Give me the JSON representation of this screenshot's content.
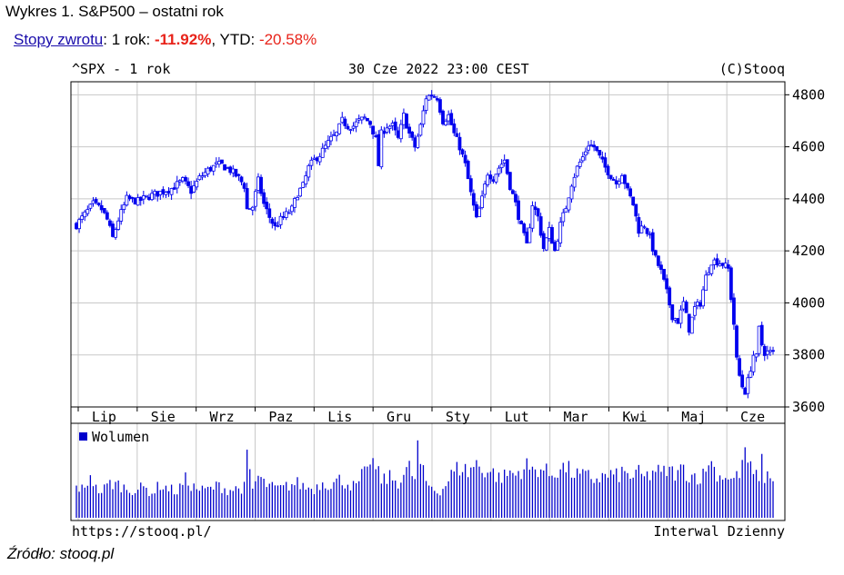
{
  "header": {
    "title": "Wykres 1. S&P500 – ostatni rok",
    "returns_link": "Stopy zwrotu",
    "returns_sep": ": 1 rok: ",
    "return_1y": "-11.92%",
    "ytd_label": ", YTD: ",
    "return_ytd": "-20.58%"
  },
  "footer": {
    "source": "Źródło: stooq.pl"
  },
  "colors": {
    "candle": "#0000ee",
    "volume": "#0000cc",
    "grid": "#c8c8c8",
    "red": "#e8231a",
    "link": "#1a0dab"
  },
  "chart_data": {
    "type": "candlestick",
    "symbol_label": "^SPX - 1 rok",
    "date_label": "30 Cze 2022 23:00 CEST",
    "copyright": "(C)Stooq",
    "url_label": "https://stooq.pl/",
    "interval_label": "Interwal Dzienny",
    "volume_legend": "Wolumen",
    "y_ticks": [
      3600,
      3800,
      4000,
      4200,
      4400,
      4600,
      4800
    ],
    "ylim": [
      3600,
      4850
    ],
    "month_labels": [
      "Lip",
      "Sie",
      "Wrz",
      "Paz",
      "Lis",
      "Gru",
      "Sty",
      "Lut",
      "Mar",
      "Kwi",
      "Maj",
      "Cze"
    ],
    "price_series": [
      [
        0,
        4300
      ],
      [
        3,
        4340
      ],
      [
        6,
        4380
      ],
      [
        9,
        4360
      ],
      [
        11,
        4320
      ],
      [
        13,
        4250
      ],
      [
        15,
        4320
      ],
      [
        18,
        4400
      ],
      [
        22,
        4390
      ],
      [
        26,
        4410
      ],
      [
        30,
        4425
      ],
      [
        34,
        4440
      ],
      [
        38,
        4470
      ],
      [
        41,
        4430
      ],
      [
        44,
        4480
      ],
      [
        47,
        4510
      ],
      [
        50,
        4530
      ],
      [
        52,
        4530
      ],
      [
        55,
        4510
      ],
      [
        58,
        4480
      ],
      [
        60,
        4450
      ],
      [
        61,
        4360
      ],
      [
        63,
        4370
      ],
      [
        65,
        4470
      ],
      [
        67,
        4380
      ],
      [
        69,
        4330
      ],
      [
        71,
        4290
      ],
      [
        73,
        4320
      ],
      [
        75,
        4340
      ],
      [
        77,
        4360
      ],
      [
        79,
        4420
      ],
      [
        81,
        4450
      ],
      [
        83,
        4520
      ],
      [
        85,
        4550
      ],
      [
        87,
        4570
      ],
      [
        89,
        4600
      ],
      [
        91,
        4630
      ],
      [
        93,
        4650
      ],
      [
        95,
        4700
      ],
      [
        97,
        4680
      ],
      [
        99,
        4680
      ],
      [
        101,
        4700
      ],
      [
        103,
        4710
      ],
      [
        105,
        4690
      ],
      [
        107,
        4630
      ],
      [
        108,
        4530
      ],
      [
        109,
        4650
      ],
      [
        111,
        4680
      ],
      [
        113,
        4680
      ],
      [
        115,
        4630
      ],
      [
        117,
        4720
      ],
      [
        119,
        4650
      ],
      [
        121,
        4600
      ],
      [
        123,
        4680
      ],
      [
        125,
        4790
      ],
      [
        127,
        4800
      ],
      [
        129,
        4790
      ],
      [
        131,
        4700
      ],
      [
        133,
        4720
      ],
      [
        135,
        4650
      ],
      [
        137,
        4600
      ],
      [
        139,
        4530
      ],
      [
        141,
        4420
      ],
      [
        143,
        4320
      ],
      [
        145,
        4400
      ],
      [
        147,
        4500
      ],
      [
        149,
        4480
      ],
      [
        151,
        4520
      ],
      [
        153,
        4550
      ],
      [
        155,
        4450
      ],
      [
        157,
        4380
      ],
      [
        159,
        4290
      ],
      [
        161,
        4220
      ],
      [
        163,
        4380
      ],
      [
        165,
        4330
      ],
      [
        167,
        4210
      ],
      [
        169,
        4280
      ],
      [
        171,
        4200
      ],
      [
        173,
        4300
      ],
      [
        175,
        4370
      ],
      [
        177,
        4460
      ],
      [
        179,
        4520
      ],
      [
        181,
        4560
      ],
      [
        183,
        4610
      ],
      [
        185,
        4600
      ],
      [
        187,
        4560
      ],
      [
        189,
        4520
      ],
      [
        191,
        4490
      ],
      [
        193,
        4460
      ],
      [
        195,
        4500
      ],
      [
        197,
        4430
      ],
      [
        199,
        4380
      ],
      [
        201,
        4280
      ],
      [
        203,
        4300
      ],
      [
        205,
        4250
      ],
      [
        207,
        4170
      ],
      [
        209,
        4120
      ],
      [
        211,
        4040
      ],
      [
        213,
        3950
      ],
      [
        215,
        3930
      ],
      [
        217,
        4000
      ],
      [
        219,
        3900
      ],
      [
        221,
        3980
      ],
      [
        223,
        4000
      ],
      [
        225,
        4100
      ],
      [
        227,
        4160
      ],
      [
        229,
        4160
      ],
      [
        231,
        4150
      ],
      [
        233,
        4130
      ],
      [
        234,
        4020
      ],
      [
        235,
        3920
      ],
      [
        236,
        3780
      ],
      [
        237,
        3720
      ],
      [
        238,
        3680
      ],
      [
        239,
        3660
      ],
      [
        240,
        3700
      ],
      [
        241,
        3750
      ],
      [
        242,
        3800
      ],
      [
        243,
        3790
      ],
      [
        244,
        3900
      ],
      [
        245,
        3840
      ],
      [
        246,
        3810
      ]
    ],
    "volume_series": [
      [
        0,
        45
      ],
      [
        3,
        40
      ],
      [
        5,
        65
      ],
      [
        7,
        42
      ],
      [
        9,
        38
      ],
      [
        12,
        50
      ],
      [
        15,
        48
      ],
      [
        18,
        42
      ],
      [
        21,
        40
      ],
      [
        24,
        44
      ],
      [
        27,
        36
      ],
      [
        30,
        48
      ],
      [
        33,
        42
      ],
      [
        36,
        38
      ],
      [
        39,
        55
      ],
      [
        42,
        44
      ],
      [
        45,
        40
      ],
      [
        48,
        42
      ],
      [
        51,
        47
      ],
      [
        54,
        40
      ],
      [
        57,
        42
      ],
      [
        60,
        44
      ],
      [
        61,
        85
      ],
      [
        63,
        42
      ],
      [
        65,
        60
      ],
      [
        67,
        50
      ],
      [
        70,
        44
      ],
      [
        73,
        42
      ],
      [
        76,
        47
      ],
      [
        79,
        50
      ],
      [
        82,
        44
      ],
      [
        85,
        42
      ],
      [
        88,
        52
      ],
      [
        91,
        48
      ],
      [
        94,
        55
      ],
      [
        97,
        50
      ],
      [
        100,
        44
      ],
      [
        102,
        60
      ],
      [
        104,
        65
      ],
      [
        105,
        88
      ],
      [
        107,
        70
      ],
      [
        109,
        55
      ],
      [
        112,
        58
      ],
      [
        115,
        52
      ],
      [
        117,
        62
      ],
      [
        119,
        72
      ],
      [
        121,
        55
      ],
      [
        122,
        100
      ],
      [
        123,
        78
      ],
      [
        125,
        50
      ],
      [
        127,
        45
      ],
      [
        129,
        38
      ],
      [
        131,
        42
      ],
      [
        134,
        62
      ],
      [
        136,
        70
      ],
      [
        138,
        74
      ],
      [
        140,
        65
      ],
      [
        142,
        76
      ],
      [
        143,
        78
      ],
      [
        145,
        70
      ],
      [
        147,
        68
      ],
      [
        149,
        65
      ],
      [
        151,
        58
      ],
      [
        153,
        60
      ],
      [
        155,
        66
      ],
      [
        157,
        62
      ],
      [
        159,
        70
      ],
      [
        161,
        74
      ],
      [
        163,
        68
      ],
      [
        165,
        72
      ],
      [
        167,
        70
      ],
      [
        169,
        62
      ],
      [
        171,
        66
      ],
      [
        173,
        72
      ],
      [
        175,
        72
      ],
      [
        177,
        66
      ],
      [
        179,
        62
      ],
      [
        181,
        60
      ],
      [
        183,
        60
      ],
      [
        185,
        56
      ],
      [
        187,
        58
      ],
      [
        189,
        60
      ],
      [
        191,
        62
      ],
      [
        193,
        60
      ],
      [
        195,
        65
      ],
      [
        197,
        62
      ],
      [
        199,
        60
      ],
      [
        201,
        64
      ],
      [
        203,
        58
      ],
      [
        205,
        62
      ],
      [
        207,
        70
      ],
      [
        209,
        62
      ],
      [
        211,
        68
      ],
      [
        213,
        66
      ],
      [
        215,
        64
      ],
      [
        217,
        72
      ],
      [
        219,
        60
      ],
      [
        221,
        62
      ],
      [
        223,
        58
      ],
      [
        225,
        66
      ],
      [
        226,
        88
      ],
      [
        228,
        70
      ],
      [
        230,
        60
      ],
      [
        232,
        62
      ],
      [
        234,
        55
      ],
      [
        236,
        60
      ],
      [
        238,
        72
      ],
      [
        239,
        104
      ],
      [
        240,
        80
      ],
      [
        242,
        60
      ],
      [
        244,
        62
      ],
      [
        245,
        78
      ],
      [
        246,
        60
      ]
    ]
  }
}
